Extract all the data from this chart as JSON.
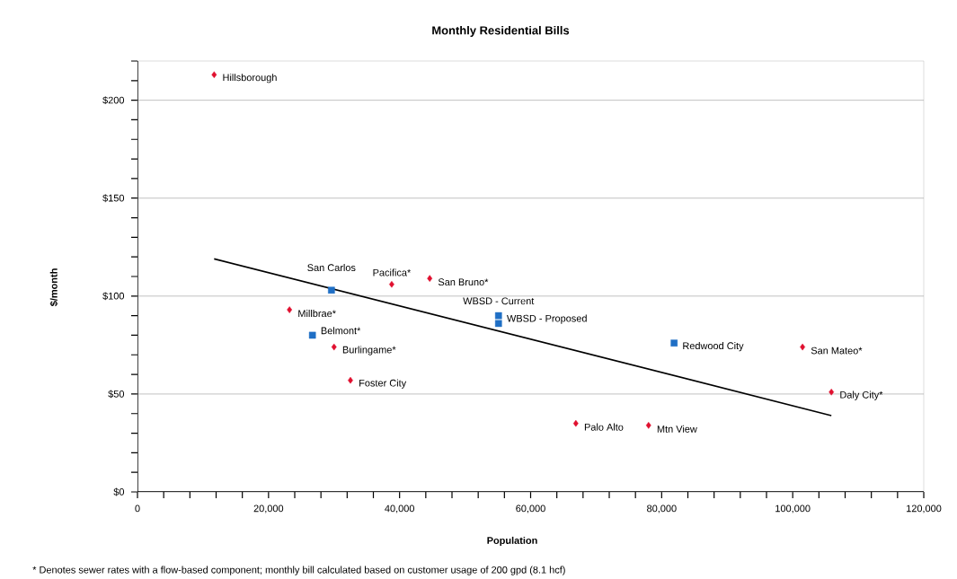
{
  "chart_data": {
    "type": "scatter",
    "title": "Monthly Residential Bills",
    "xlabel": "Population",
    "ylabel": "$/month",
    "xlim": [
      0,
      120000
    ],
    "ylim": [
      0,
      220
    ],
    "xticks": [
      0,
      {
        "value": 4000,
        "label": null
      },
      {
        "value": 8000,
        "label": null
      },
      {
        "value": 12000,
        "label": null
      },
      {
        "value": 16000,
        "label": null
      },
      {
        "value": 20000,
        "label": "20,000"
      },
      {
        "value": 24000,
        "label": null
      },
      {
        "value": 28000,
        "label": null
      },
      {
        "value": 32000,
        "label": null
      },
      {
        "value": 36000,
        "label": null
      },
      {
        "value": 40000,
        "label": "40,000"
      },
      {
        "value": 44000,
        "label": null
      },
      {
        "value": 48000,
        "label": null
      },
      {
        "value": 52000,
        "label": null
      },
      {
        "value": 56000,
        "label": null
      },
      {
        "value": 60000,
        "label": "60,000"
      },
      {
        "value": 64000,
        "label": null
      },
      {
        "value": 68000,
        "label": null
      },
      {
        "value": 72000,
        "label": null
      },
      {
        "value": 76000,
        "label": null
      },
      {
        "value": 80000,
        "label": "80,000"
      },
      {
        "value": 84000,
        "label": null
      },
      {
        "value": 88000,
        "label": null
      },
      {
        "value": 92000,
        "label": null
      },
      {
        "value": 96000,
        "label": null
      },
      {
        "value": 100000,
        "label": "100,000"
      },
      {
        "value": 104000,
        "label": null
      },
      {
        "value": 108000,
        "label": null
      },
      {
        "value": 112000,
        "label": null
      },
      {
        "value": 116000,
        "label": null
      },
      {
        "value": 120000,
        "label": "120,000"
      }
    ],
    "yticks": [
      {
        "value": 0,
        "label": "$0"
      },
      {
        "value": 10,
        "label": null
      },
      {
        "value": 20,
        "label": null
      },
      {
        "value": 30,
        "label": null
      },
      {
        "value": 40,
        "label": null
      },
      {
        "value": 50,
        "label": "$50"
      },
      {
        "value": 60,
        "label": null
      },
      {
        "value": 70,
        "label": null
      },
      {
        "value": 80,
        "label": null
      },
      {
        "value": 90,
        "label": null
      },
      {
        "value": 100,
        "label": "$100"
      },
      {
        "value": 110,
        "label": null
      },
      {
        "value": 120,
        "label": null
      },
      {
        "value": 130,
        "label": null
      },
      {
        "value": 140,
        "label": null
      },
      {
        "value": 150,
        "label": "$150"
      },
      {
        "value": 160,
        "label": null
      },
      {
        "value": 170,
        "label": null
      },
      {
        "value": 180,
        "label": null
      },
      {
        "value": 190,
        "label": null
      },
      {
        "value": 200,
        "label": "$200"
      },
      {
        "value": 210,
        "label": null
      },
      {
        "value": 220,
        "label": null
      }
    ],
    "grid": "y",
    "series": [
      {
        "marker": "diamond",
        "color": "#e0102f",
        "x": [
          11700,
          23200,
          30000,
          32500,
          38800,
          44600,
          66900,
          78000,
          101500,
          105900
        ],
        "values": [
          213,
          93,
          74,
          57,
          106,
          109,
          35,
          34,
          74,
          51
        ]
      },
      {
        "marker": "square",
        "color": "#1f6fc5",
        "x": [
          26700,
          29600,
          55100,
          55100,
          81900
        ],
        "values": [
          80,
          103,
          90,
          86,
          76
        ]
      },
      {
        "type": "line",
        "marker": "none",
        "color": "#000000",
        "x": [
          11700,
          105900
        ],
        "values": [
          119,
          39
        ]
      }
    ],
    "annotations": [
      {
        "text": "Hillsborough",
        "x": 11700,
        "y": 213
      },
      {
        "text": "San Carlos",
        "x": 29600,
        "y": 103
      },
      {
        "text": "San Bruno*",
        "x": 44600,
        "y": 109
      },
      {
        "text": "Pacifica*",
        "x": 38800,
        "y": 106
      },
      {
        "text": "Millbrae*",
        "x": 23200,
        "y": 93
      },
      {
        "text": "Belmont*",
        "x": 26700,
        "y": 80
      },
      {
        "text": "Burlingame*",
        "x": 30000,
        "y": 74
      },
      {
        "text": "Foster City",
        "x": 32500,
        "y": 57
      },
      {
        "text": "WBSD - Proposed",
        "x": 55100,
        "y": 90
      },
      {
        "text": "WBSD - Current",
        "x": 55100,
        "y": 86
      },
      {
        "text": "Redwood City",
        "x": 81900,
        "y": 76
      },
      {
        "text": "San Mateo*",
        "x": 101500,
        "y": 74
      },
      {
        "text": "Daly City*",
        "x": 105900,
        "y": 51
      },
      {
        "text": "Palo Alto",
        "x": 66900,
        "y": 35
      },
      {
        "text": "Mtn View",
        "x": 78000,
        "y": 34
      },
      "* Denotes sewer rates with a flow-based component; monthly bill calculated based on customer usage of 200 gpd (8.1 hcf)"
    ]
  }
}
